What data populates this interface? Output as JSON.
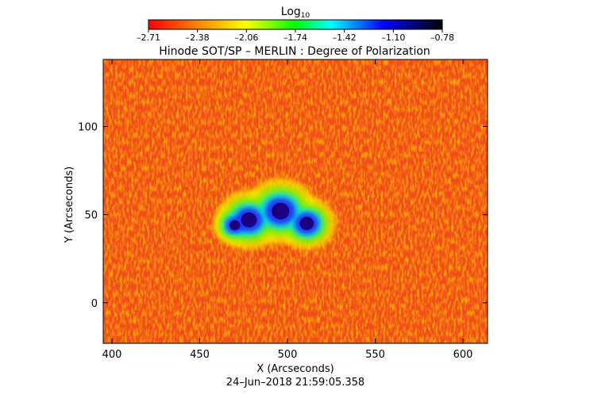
{
  "chart_data": {
    "type": "heatmap",
    "title": "Hinode SOT/SP – MERLIN : Degree of Polarization",
    "xlabel": "X (Arcseconds)",
    "ylabel": "Y (Arcseconds)",
    "timestamp": "24–Jun–2018 21:59:05.358",
    "colorbar": {
      "label_base": "Log",
      "label_sub": "10",
      "ticks": [
        "–2.71",
        "–2.38",
        "–2.06",
        "–1.74",
        "–1.42",
        "–1.10",
        "–0.78"
      ],
      "range": [
        -2.71,
        -0.78
      ],
      "colormap": [
        "#ff0000",
        "#ff8c00",
        "#ffff00",
        "#00ff00",
        "#00ffff",
        "#0000ff",
        "#000000"
      ]
    },
    "xlim": [
      395,
      614
    ],
    "ylim": [
      -23,
      138
    ],
    "xticks": [
      400,
      450,
      500,
      550,
      600
    ],
    "yticks": [
      0,
      50,
      100
    ],
    "spots": [
      {
        "x": 478,
        "y": 47,
        "r": 4.5,
        "level": -0.85
      },
      {
        "x": 496,
        "y": 52,
        "r": 5,
        "level": -0.82
      },
      {
        "x": 511,
        "y": 45,
        "r": 4,
        "level": -0.88
      },
      {
        "x": 470,
        "y": 44,
        "r": 3,
        "level": -1.0
      }
    ]
  }
}
